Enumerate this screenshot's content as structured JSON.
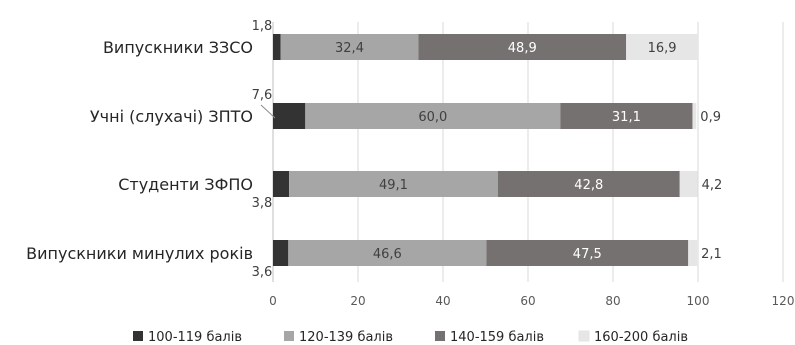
{
  "chart_data": {
    "type": "bar",
    "orientation": "horizontal",
    "stacked": true,
    "categories": [
      "Випускники ЗЗСО",
      "Учні (слухачі) ЗПТО",
      "Студенти ЗФПО",
      "Випускники минулих років"
    ],
    "series": [
      {
        "name": "100-119 балів",
        "color": "#333333",
        "values": [
          1.8,
          7.6,
          3.8,
          3.6
        ],
        "labels": [
          "1,8",
          "7,6",
          "3,8",
          "3,6"
        ]
      },
      {
        "name": "120-139 балів",
        "color": "#a6a6a6",
        "values": [
          32.4,
          60.0,
          49.1,
          46.6
        ],
        "labels": [
          "32,4",
          "60,0",
          "49,1",
          "46,6"
        ]
      },
      {
        "name": "140-159 балів",
        "color": "#767171",
        "values": [
          48.9,
          31.1,
          42.8,
          47.5
        ],
        "labels": [
          "48,9",
          "31,1",
          "42,8",
          "47,5"
        ]
      },
      {
        "name": "160-200 балів",
        "color": "#e7e6e6",
        "values": [
          16.9,
          0.9,
          4.2,
          2.1
        ],
        "labels": [
          "16,9",
          "0,9",
          "4,2",
          "2,1"
        ]
      }
    ],
    "xlim": [
      0,
      120
    ],
    "xticks": [
      "0",
      "20",
      "40",
      "60",
      "80",
      "100",
      "120"
    ],
    "grid": true,
    "legend": "bottom"
  }
}
